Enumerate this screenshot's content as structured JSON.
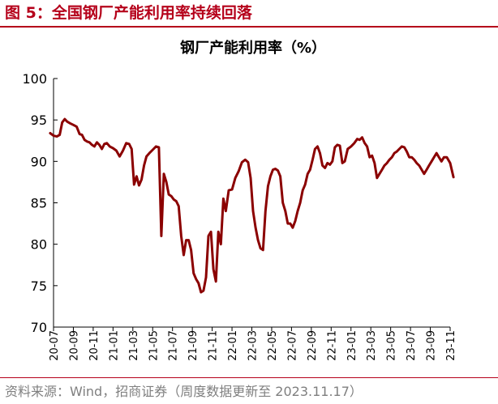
{
  "figure": {
    "title": "图 5：全国钢厂产能利用率持续回落",
    "source": "资料来源：Wind，招商证券（周度数据更新至 2023.11.17）"
  },
  "colors": {
    "accent": "#B5001A",
    "line": "#8B0000"
  },
  "chart_data": {
    "type": "line",
    "title": "钢厂产能利用率（%）",
    "xlabel": "",
    "ylabel": "",
    "ylim": [
      70,
      100
    ],
    "yticks": [
      70,
      75,
      80,
      85,
      90,
      95,
      100
    ],
    "grid": false,
    "xlim": [
      "2020-07",
      "2023-11"
    ],
    "xtick_labels": [
      "20-07",
      "20-09",
      "20-11",
      "21-01",
      "21-03",
      "21-05",
      "21-07",
      "21-09",
      "21-11",
      "22-01",
      "22-03",
      "22-05",
      "22-07",
      "22-09",
      "22-11",
      "23-01",
      "23-03",
      "23-05",
      "23-07",
      "23-09",
      "23-11"
    ],
    "series": [
      {
        "name": "",
        "x": [
          "2020-07",
          "2020-07",
          "2020-07",
          "2020-08",
          "2020-08",
          "2020-08",
          "2020-08",
          "2020-09",
          "2020-09",
          "2020-09",
          "2020-10",
          "2020-10",
          "2020-10",
          "2020-10",
          "2020-11",
          "2020-11",
          "2020-11",
          "2020-11",
          "2020-12",
          "2020-12",
          "2020-12",
          "2020-12",
          "2021-01",
          "2021-01",
          "2021-01",
          "2021-02",
          "2021-02",
          "2021-02",
          "2021-03",
          "2021-03",
          "2021-03",
          "2021-03",
          "2021-04",
          "2021-04",
          "2021-04",
          "2021-04",
          "2021-05",
          "2021-05",
          "2021-05",
          "2021-06",
          "2021-06",
          "2021-06",
          "2021-06",
          "2021-07",
          "2021-07",
          "2021-07",
          "2021-07",
          "2021-08",
          "2021-08",
          "2021-08",
          "2021-08",
          "2021-09",
          "2021-09",
          "2021-09",
          "2021-09",
          "2021-10",
          "2021-10",
          "2021-10",
          "2021-10",
          "2021-11",
          "2021-11",
          "2021-11",
          "2021-11",
          "2021-12",
          "2021-12",
          "2021-12",
          "2021-12",
          "2022-01",
          "2022-01",
          "2022-01",
          "2022-02",
          "2022-02",
          "2022-02",
          "2022-03",
          "2022-03",
          "2022-03",
          "2022-03",
          "2022-04",
          "2022-04",
          "2022-04",
          "2022-04",
          "2022-05",
          "2022-05",
          "2022-05",
          "2022-05",
          "2022-06",
          "2022-06",
          "2022-06",
          "2022-06",
          "2022-07",
          "2022-07",
          "2022-07",
          "2022-07",
          "2022-08",
          "2022-08",
          "2022-08",
          "2022-08",
          "2022-09",
          "2022-09",
          "2022-09",
          "2022-09",
          "2022-10",
          "2022-10",
          "2022-10",
          "2022-10",
          "2022-11",
          "2022-11",
          "2022-11",
          "2022-11",
          "2022-12",
          "2022-12",
          "2022-12",
          "2022-12",
          "2023-01",
          "2023-01",
          "2023-01",
          "2023-02",
          "2023-02",
          "2023-02",
          "2023-02",
          "2023-03",
          "2023-03",
          "2023-03",
          "2023-03",
          "2023-04",
          "2023-04",
          "2023-04",
          "2023-04",
          "2023-05",
          "2023-05",
          "2023-05",
          "2023-05",
          "2023-06",
          "2023-06",
          "2023-06",
          "2023-06",
          "2023-07",
          "2023-07",
          "2023-07",
          "2023-07",
          "2023-08",
          "2023-08",
          "2023-08",
          "2023-08",
          "2023-09",
          "2023-09",
          "2023-09",
          "2023-09",
          "2023-10",
          "2023-10",
          "2023-10",
          "2023-10",
          "2023-11",
          "2023-11",
          "2023-11"
        ],
        "values": [
          93.4,
          93.1,
          93.0,
          93.2,
          94.7,
          95.1,
          94.8,
          94.6,
          94.4,
          94.2,
          93.3,
          93.2,
          92.6,
          92.4,
          92.3,
          92.0,
          91.8,
          92.3,
          92.0,
          91.5,
          92.1,
          92.2,
          91.8,
          91.6,
          91.3,
          90.6,
          91.3,
          92.2,
          92.1,
          91.5,
          87.2,
          88.2,
          87.1,
          87.8,
          89.5,
          90.6,
          91.0,
          91.4,
          91.8,
          91.7,
          81.0,
          88.5,
          87.5,
          86.0,
          85.8,
          85.4,
          85.2,
          84.6,
          81.0,
          78.7,
          80.5,
          80.5,
          79.3,
          76.5,
          75.8,
          75.3,
          74.2,
          74.4,
          76.0,
          81.0,
          81.5,
          77.0,
          75.5,
          81.5,
          80.0,
          85.5,
          84.0,
          86.5,
          86.6,
          88.0,
          88.8,
          89.9,
          90.2,
          89.9,
          88.0,
          84.0,
          82.0,
          80.5,
          79.5,
          79.3,
          84.0,
          87.0,
          88.2,
          89.0,
          89.1,
          88.9,
          88.2,
          85.0,
          84.0,
          82.5,
          82.5,
          82.0,
          82.8,
          84.0,
          85.0,
          86.5,
          87.2,
          88.5,
          89.0,
          90.2,
          91.5,
          91.8,
          91.0,
          89.5,
          89.2,
          89.8,
          89.6,
          90.0,
          91.7,
          92.0,
          91.9,
          89.8,
          90.0,
          91.5,
          91.8,
          92.2,
          92.7,
          92.6,
          92.9,
          92.2,
          91.8,
          90.5,
          90.7,
          89.8,
          88.0,
          88.5,
          89.0,
          89.5,
          89.8,
          90.2,
          90.5,
          91.0,
          91.2,
          91.5,
          91.8,
          91.7,
          91.2,
          90.5,
          90.5,
          90.2,
          89.8,
          89.5,
          89.0,
          88.5,
          89.0,
          89.5,
          90.0,
          90.5,
          91.0,
          90.5,
          90.0,
          90.5,
          90.5,
          89.8,
          88.1
        ]
      }
    ]
  }
}
